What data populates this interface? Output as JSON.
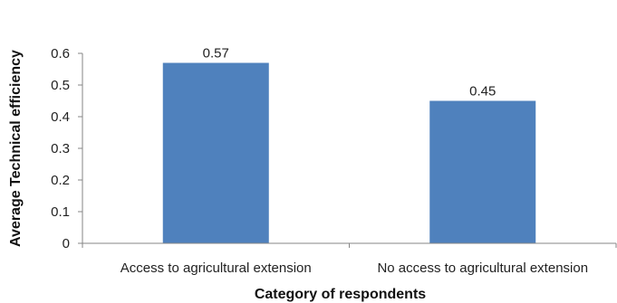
{
  "chart_data": {
    "type": "bar",
    "title": "",
    "xlabel": "Category of respondents",
    "ylabel": "Average Technical efficiency",
    "categories": [
      "Access to agricultural extension",
      "No access to agricultural extension"
    ],
    "values": [
      0.57,
      0.45
    ],
    "data_labels": [
      "0.57",
      "0.45"
    ],
    "yticks": [
      0,
      0.1,
      0.2,
      0.3,
      0.4,
      0.5,
      0.6
    ],
    "ytick_labels": [
      "0",
      "0.1",
      "0.2",
      "0.3",
      "0.4",
      "0.5",
      "0.6"
    ],
    "ylim": [
      0,
      0.6
    ],
    "grid": false,
    "legend": "none",
    "bar_color": "#4F81BD",
    "axis_color": "#868686"
  }
}
